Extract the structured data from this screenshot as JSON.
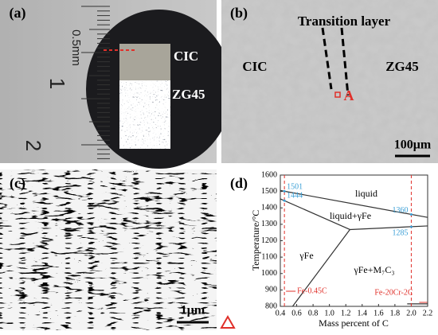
{
  "panels": [
    {
      "label": "(a)",
      "texts": [
        "CIC",
        "ZG45"
      ],
      "ruler_labels": [
        "0.5mm",
        "1",
        "2"
      ]
    },
    {
      "label": "(b)",
      "texts": [
        "Transition layer",
        "CIC",
        "ZG45",
        "A"
      ],
      "scale_bar": "100μm"
    },
    {
      "label": "(c)",
      "scale_bar": "1μm"
    }
  ],
  "chart_data": {
    "type": "line",
    "label": "(d)",
    "xlabel": "Mass percent of C",
    "ylabel": "Temperature/°C",
    "xlim": [
      0.4,
      2.2
    ],
    "ylim": [
      800,
      1600
    ],
    "xticks": [
      0.4,
      0.6,
      0.8,
      {
        "value": 1,
        "label": "1.0"
      },
      1.2,
      1.4,
      1.6,
      1.8,
      {
        "value": 2,
        "label": "2.0"
      },
      2.2
    ],
    "yticks": [
      800,
      900,
      1000,
      1100,
      1200,
      1300,
      1400,
      1500,
      1600
    ],
    "series": [
      {
        "color": "#333333",
        "x": [
          0.4,
          2.2
        ],
        "values": [
          1506,
          1342
        ]
      },
      {
        "color": "#333333",
        "x": [
          0.4,
          1.25
        ],
        "values": [
          1455,
          1268
        ]
      },
      {
        "color": "#333333",
        "x": [
          1.25,
          2.2
        ],
        "values": [
          1268,
          1290
        ]
      },
      {
        "color": "#333333",
        "x": [
          1.25,
          0.55
        ],
        "values": [
          1268,
          800
        ]
      },
      {
        "color": "#333333",
        "x": [
          1.95,
          2.2
        ],
        "values": [
          815,
          815
        ]
      }
    ],
    "reference_lines": [
      {
        "value": 0.45,
        "label": "Fe-0.45C"
      },
      {
        "value": 2,
        "label": "Fe-20Cr-2C"
      }
    ],
    "reference_color": "#e0302a",
    "marked_points": {
      "x": [
        0.45,
        0.45,
        2,
        2
      ],
      "values": [
        1501,
        1444,
        1360,
        1285
      ],
      "color": "#3a9fd6"
    },
    "region_labels": [
      "liquid",
      "liquid+γFe",
      "γFe",
      "γFe+M₇C₃"
    ]
  }
}
